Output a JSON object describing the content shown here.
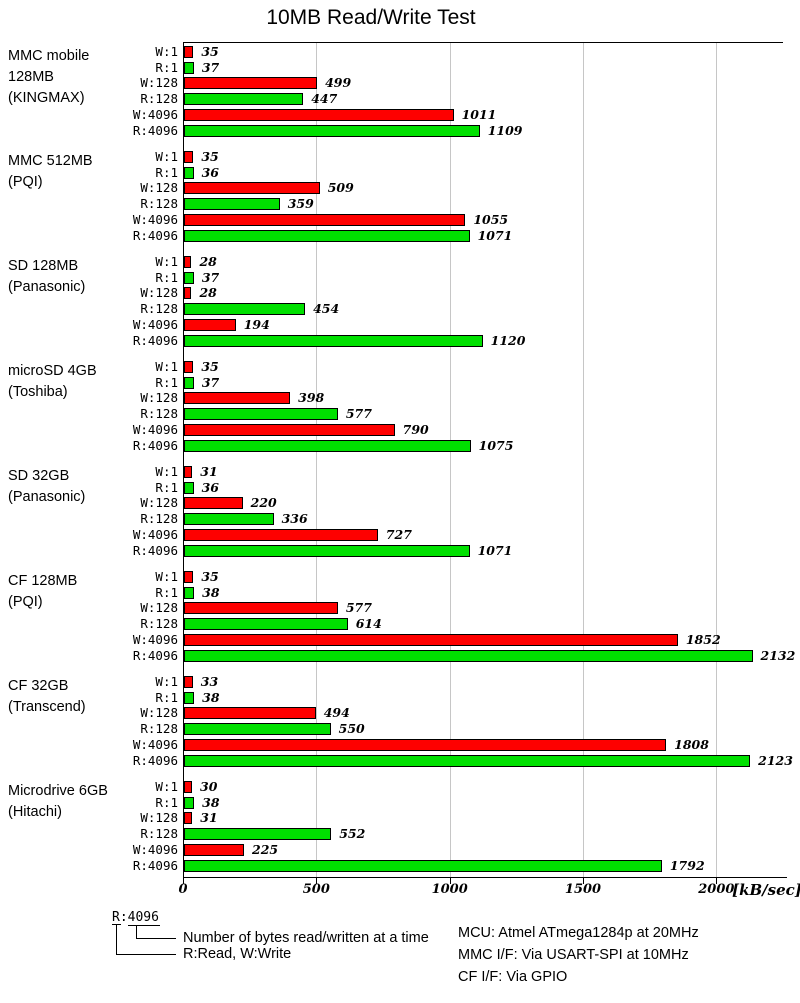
{
  "chart_data": {
    "type": "bar",
    "orientation": "horizontal",
    "title": "10MB Read/Write Test",
    "xlabel_unit": "[kB/sec]",
    "x_ticks": [
      0,
      500,
      1000,
      1500,
      2000
    ],
    "xlim": [
      0,
      2250
    ],
    "grid": "vertical",
    "legend_position": "none",
    "row_labels": [
      "W:1",
      "R:1",
      "W:128",
      "R:128",
      "W:4096",
      "R:4096"
    ],
    "series_colors": {
      "write": "#fe0000",
      "read": "#00e000"
    },
    "groups": [
      {
        "label_lines": [
          "MMC mobile",
          "128MB",
          "(KINGMAX)"
        ],
        "values": [
          35,
          37,
          499,
          447,
          1011,
          1109
        ]
      },
      {
        "label_lines": [
          "MMC 512MB",
          "(PQI)"
        ],
        "values": [
          35,
          36,
          509,
          359,
          1055,
          1071
        ]
      },
      {
        "label_lines": [
          "SD 128MB",
          "(Panasonic)"
        ],
        "values": [
          28,
          37,
          28,
          454,
          194,
          1120
        ]
      },
      {
        "label_lines": [
          "microSD 4GB",
          "(Toshiba)"
        ],
        "values": [
          35,
          37,
          398,
          577,
          790,
          1075
        ]
      },
      {
        "label_lines": [
          "SD 32GB",
          "(Panasonic)"
        ],
        "values": [
          31,
          36,
          220,
          336,
          727,
          1071
        ]
      },
      {
        "label_lines": [
          "CF 128MB",
          "(PQI)"
        ],
        "values": [
          35,
          38,
          577,
          614,
          1852,
          2132
        ]
      },
      {
        "label_lines": [
          "CF 32GB",
          "(Transcend)"
        ],
        "values": [
          33,
          38,
          494,
          550,
          1808,
          2123
        ]
      },
      {
        "label_lines": [
          "Microdrive 6GB",
          "(Hitachi)"
        ],
        "values": [
          30,
          38,
          31,
          552,
          225,
          1792
        ]
      }
    ]
  },
  "legend": {
    "sample_label": "R:4096",
    "note_bytes": "Number of bytes read/written at a time",
    "note_rw": "R:Read, W:Write"
  },
  "footer": {
    "lines": [
      "MCU: Atmel ATmega1284p at 20MHz",
      "MMC I/F: Via USART-SPI at 10MHz",
      "CF I/F: Via GPIO"
    ]
  }
}
